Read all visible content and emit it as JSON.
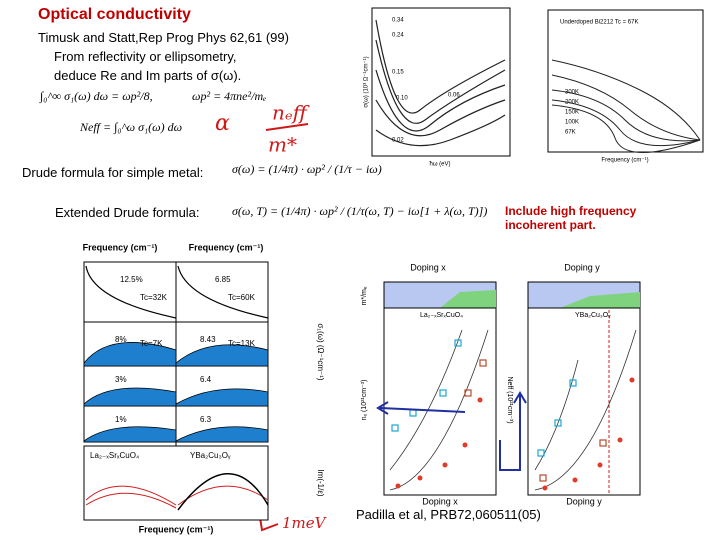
{
  "header": {
    "title": "Optical conductivity",
    "citation": "Timusk and Statt,Rep Prog Phys 62,61 (99)"
  },
  "intro": [
    "From reflectivity or ellipsometry,",
    "deduce Re and Im parts of σ(ω)."
  ],
  "formulas": {
    "sum_rule": "∫₀^∞ σ₁(ω) dω = ωp²/8,",
    "plasma": "ωp² = 4πne²/mₑ",
    "neff": "Neff = ∫₀^ω σ₁(ω) dω",
    "drude_label": "Drude formula for simple metal:",
    "drude": "σ(ω) = (1/4π) · ωp² / (1/τ − iω)",
    "ext_label": "Extended Drude formula:",
    "ext": "σ(ω, T) = (1/4π) · ωp² / (1/τ(ω, T) − iω[1 + λ(ω, T)])"
  },
  "note": "Include high frequency incoherent part.",
  "handwritten": {
    "alpha": "α",
    "neff": "nₑff",
    "mstar": "m*",
    "mev": "1meV"
  },
  "figure_timusk_lsco": {
    "axis_x": "ħω (eV)",
    "axis_y": "σ(ω) (10³ Ω⁻¹cm⁻¹)",
    "labels": [
      "0.34",
      "0.24",
      "0.15",
      "0.10",
      "0.06",
      "0.02"
    ]
  },
  "figure_timusk_bi2212": {
    "title": "Underdoped Bi2212 Tc = 67K",
    "axis_x": "Frequency (cm⁻¹)",
    "labels": [
      "300K",
      "200K",
      "150K",
      "100K",
      "67K"
    ]
  },
  "figure_left": {
    "axis_top": [
      "Frequency (cm⁻¹)",
      "Frequency (cm⁻¹)"
    ],
    "panels": [
      "12.5%",
      "Tc=32K",
      "6.85",
      "Tc=60K",
      "8%",
      "Tc=7K",
      "8.43",
      "Tc=13K",
      "3%",
      "6.4",
      "1%",
      "6.3"
    ],
    "compounds": [
      "La₂₋ₓSrₓCuO₄",
      "YBa₂Cu₃Oᵧ"
    ],
    "axis_bottom": "Frequency (cm⁻¹)",
    "axis_right": [
      "σ₁(ω) (Ω⁻¹cm⁻¹)",
      "Im(-1/ε)"
    ]
  },
  "figure_right": {
    "axis_top": [
      "Doping x",
      "Doping y"
    ],
    "axis_bottom": [
      "Doping x",
      "Doping y"
    ],
    "compounds": [
      "La₂₋ₓSrₓCuO₄",
      "YBa₂Cu₃Oᵧ"
    ],
    "axis_y": [
      "m*/mₑ",
      "nₑ (10²¹cm⁻³)",
      "Neff (10²¹cm⁻³)"
    ]
  },
  "credit": "Padilla et al, PRB72,060511(05)"
}
